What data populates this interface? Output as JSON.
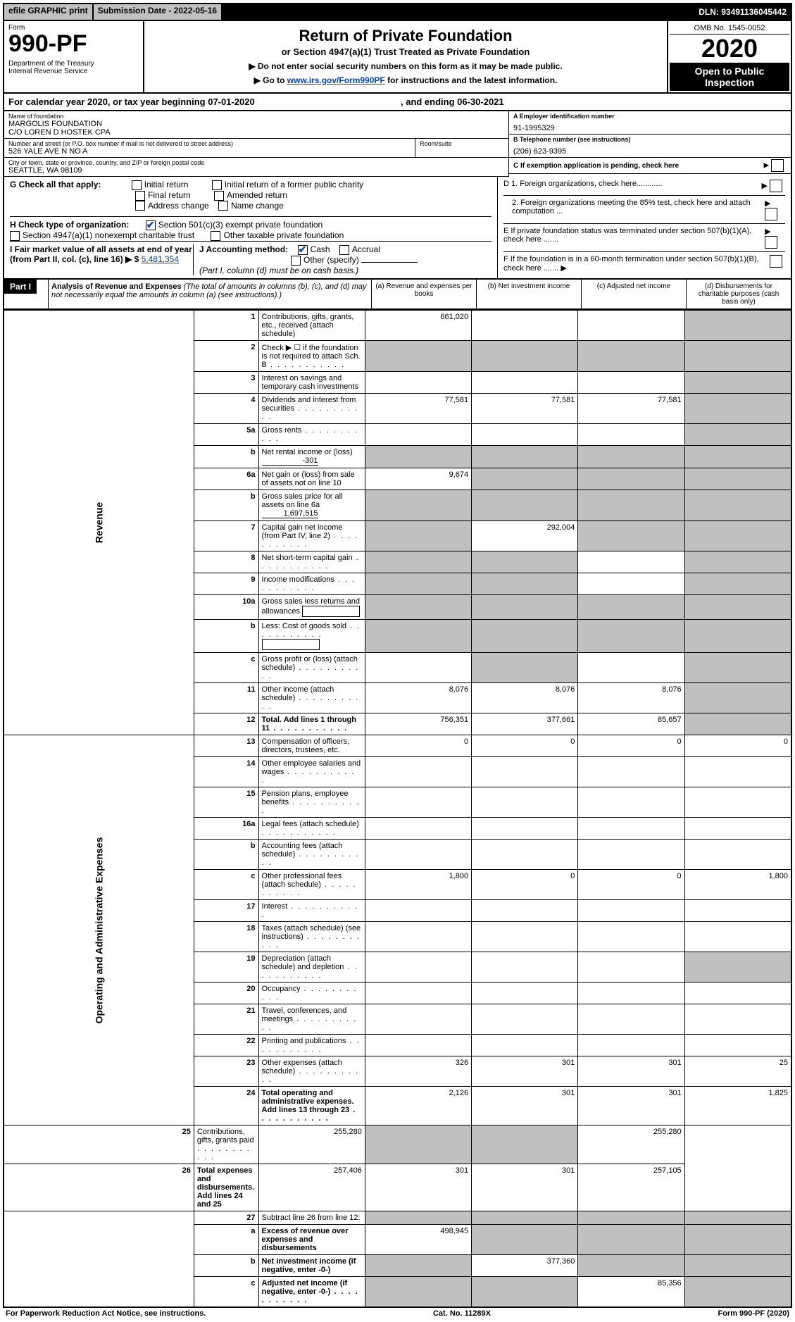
{
  "topbar": {
    "efile": "efile GRAPHIC print",
    "subdate_label": "Submission Date - 2022-05-16",
    "dln": "DLN: 93491136045442"
  },
  "header": {
    "form_word": "Form",
    "form_no": "990-PF",
    "dept": "Department of the Treasury\nInternal Revenue Service",
    "title": "Return of Private Foundation",
    "subtitle": "or Section 4947(a)(1) Trust Treated as Private Foundation",
    "instr1": "▶ Do not enter social security numbers on this form as it may be made public.",
    "instr2": "▶ Go to www.irs.gov/Form990PF for instructions and the latest information.",
    "omb": "OMB No. 1545-0052",
    "year": "2020",
    "open": "Open to Public Inspection"
  },
  "yearline": {
    "prefix": "For calendar year 2020, or tax year beginning 07-01-2020",
    "mid": ", and ending 06-30-2021"
  },
  "info": {
    "name_lbl": "Name of foundation",
    "name_val": "MARGOLIS FOUNDATION\nC/O LOREN D HOSTEK CPA",
    "ein_lbl": "A Employer identification number",
    "ein_val": "91-1995329",
    "addr_lbl": "Number and street (or P.O. box number if mail is not delivered to street address)",
    "addr_val": "526 YALE AVE N NO A",
    "room_lbl": "Room/suite",
    "room_val": "",
    "tel_lbl": "B Telephone number (see instructions)",
    "tel_val": "(206) 623-9395",
    "city_lbl": "City or town, state or province, country, and ZIP or foreign postal code",
    "city_val": "SEATTLE, WA  98109",
    "c_lbl": "C If exemption application is pending, check here"
  },
  "checks": {
    "g_label": "G Check all that apply:",
    "g_opts": [
      "Initial return",
      "Initial return of a former public charity",
      "Final return",
      "Amended return",
      "Address change",
      "Name change"
    ],
    "h_label": "H Check type of organization:",
    "h_opt1": "Section 501(c)(3) exempt private foundation",
    "h_opt2": "Section 4947(a)(1) nonexempt charitable trust",
    "h_opt3": "Other taxable private foundation",
    "i_label": "I Fair market value of all assets at end of year (from Part II, col. (c), line 16) ▶ $",
    "i_val": "5,481,354",
    "j_label": "J Accounting method:",
    "j_cash": "Cash",
    "j_accrual": "Accrual",
    "j_other": "Other (specify)",
    "j_note": "(Part I, column (d) must be on cash basis.)",
    "d1": "D 1. Foreign organizations, check here............",
    "d2": "2. Foreign organizations meeting the 85% test, check here and attach computation ...",
    "e": "E  If private foundation status was terminated under section 507(b)(1)(A), check here .......",
    "f": "F  If the foundation is in a 60-month termination under section 507(b)(1)(B), check here .......  ▶"
  },
  "part1": {
    "label": "Part I",
    "title": "Analysis of Revenue and Expenses",
    "note": "(The total of amounts in columns (b), (c), and (d) may not necessarily equal the amounts in column (a) (see instructions).)",
    "cols": {
      "a": "(a) Revenue and expenses per books",
      "b": "(b) Net investment income",
      "c": "(c) Adjusted net income",
      "d": "(d) Disbursements for charitable purposes (cash basis only)"
    }
  },
  "side_labels": {
    "rev": "Revenue",
    "exp": "Operating and Administrative Expenses"
  },
  "rows": [
    {
      "ln": "1",
      "desc": "Contributions, gifts, grants, etc., received (attach schedule)",
      "a": "661,020",
      "b": "",
      "c": "",
      "d": "",
      "dgrey": true
    },
    {
      "ln": "2",
      "desc": "Check ▶ ☐ if the foundation is not required to attach Sch. B",
      "a": "",
      "b": "",
      "c": "",
      "d": "",
      "agrey": true,
      "bgrey": true,
      "cgrey": true,
      "dgrey": true,
      "dots": true
    },
    {
      "ln": "3",
      "desc": "Interest on savings and temporary cash investments",
      "a": "",
      "b": "",
      "c": "",
      "d": "",
      "dgrey": true
    },
    {
      "ln": "4",
      "desc": "Dividends and interest from securities",
      "a": "77,581",
      "b": "77,581",
      "c": "77,581",
      "d": "",
      "dots": true,
      "dgrey": true
    },
    {
      "ln": "5a",
      "desc": "Gross rents",
      "a": "",
      "b": "",
      "c": "",
      "d": "",
      "dots": true,
      "dgrey": true
    },
    {
      "ln": "b",
      "desc": "Net rental income or (loss)",
      "inline_val": "-301",
      "a": "",
      "b": "",
      "c": "",
      "d": "",
      "agrey": true,
      "bgrey": true,
      "cgrey": true,
      "dgrey": true
    },
    {
      "ln": "6a",
      "desc": "Net gain or (loss) from sale of assets not on line 10",
      "a": "9,674",
      "b": "",
      "c": "",
      "d": "",
      "bgrey": true,
      "cgrey": true,
      "dgrey": true
    },
    {
      "ln": "b",
      "desc": "Gross sales price for all assets on line 6a",
      "inline_val": "1,697,515",
      "a": "",
      "b": "",
      "c": "",
      "d": "",
      "agrey": true,
      "bgrey": true,
      "cgrey": true,
      "dgrey": true
    },
    {
      "ln": "7",
      "desc": "Capital gain net income (from Part IV, line 2)",
      "a": "",
      "b": "292,004",
      "c": "",
      "d": "",
      "dots": true,
      "agrey": true,
      "cgrey": true,
      "dgrey": true
    },
    {
      "ln": "8",
      "desc": "Net short-term capital gain",
      "a": "",
      "b": "",
      "c": "",
      "d": "",
      "dots": true,
      "agrey": true,
      "bgrey": true,
      "dgrey": true
    },
    {
      "ln": "9",
      "desc": "Income modifications",
      "a": "",
      "b": "",
      "c": "",
      "d": "",
      "dots": true,
      "agrey": true,
      "bgrey": true,
      "dgrey": true
    },
    {
      "ln": "10a",
      "desc": "Gross sales less returns and allowances",
      "a": "",
      "b": "",
      "c": "",
      "d": "",
      "box": true,
      "agrey": true,
      "bgrey": true,
      "cgrey": true,
      "dgrey": true
    },
    {
      "ln": "b",
      "desc": "Less: Cost of goods sold",
      "a": "",
      "b": "",
      "c": "",
      "d": "",
      "dots": true,
      "box": true,
      "agrey": true,
      "bgrey": true,
      "cgrey": true,
      "dgrey": true
    },
    {
      "ln": "c",
      "desc": "Gross profit or (loss) (attach schedule)",
      "a": "",
      "b": "",
      "c": "",
      "d": "",
      "dots": true,
      "bgrey": true,
      "dgrey": true
    },
    {
      "ln": "11",
      "desc": "Other income (attach schedule)",
      "a": "8,076",
      "b": "8,076",
      "c": "8,076",
      "d": "",
      "dots": true,
      "dgrey": true
    },
    {
      "ln": "12",
      "desc": "Total. Add lines 1 through 11",
      "a": "756,351",
      "b": "377,661",
      "c": "85,657",
      "d": "",
      "dots": true,
      "bold": true,
      "dgrey": true
    },
    {
      "ln": "13",
      "desc": "Compensation of officers, directors, trustees, etc.",
      "a": "0",
      "b": "0",
      "c": "0",
      "d": "0",
      "section": "exp"
    },
    {
      "ln": "14",
      "desc": "Other employee salaries and wages",
      "a": "",
      "b": "",
      "c": "",
      "d": "",
      "dots": true
    },
    {
      "ln": "15",
      "desc": "Pension plans, employee benefits",
      "a": "",
      "b": "",
      "c": "",
      "d": "",
      "dots": true
    },
    {
      "ln": "16a",
      "desc": "Legal fees (attach schedule)",
      "a": "",
      "b": "",
      "c": "",
      "d": "",
      "dots": true
    },
    {
      "ln": "b",
      "desc": "Accounting fees (attach schedule)",
      "a": "",
      "b": "",
      "c": "",
      "d": "",
      "dots": true
    },
    {
      "ln": "c",
      "desc": "Other professional fees (attach schedule)",
      "a": "1,800",
      "b": "0",
      "c": "0",
      "d": "1,800",
      "dots": true
    },
    {
      "ln": "17",
      "desc": "Interest",
      "a": "",
      "b": "",
      "c": "",
      "d": "",
      "dots": true
    },
    {
      "ln": "18",
      "desc": "Taxes (attach schedule) (see instructions)",
      "a": "",
      "b": "",
      "c": "",
      "d": "",
      "dots": true
    },
    {
      "ln": "19",
      "desc": "Depreciation (attach schedule) and depletion",
      "a": "",
      "b": "",
      "c": "",
      "d": "",
      "dots": true,
      "dgrey": true
    },
    {
      "ln": "20",
      "desc": "Occupancy",
      "a": "",
      "b": "",
      "c": "",
      "d": "",
      "dots": true
    },
    {
      "ln": "21",
      "desc": "Travel, conferences, and meetings",
      "a": "",
      "b": "",
      "c": "",
      "d": "",
      "dots": true
    },
    {
      "ln": "22",
      "desc": "Printing and publications",
      "a": "",
      "b": "",
      "c": "",
      "d": "",
      "dots": true
    },
    {
      "ln": "23",
      "desc": "Other expenses (attach schedule)",
      "a": "326",
      "b": "301",
      "c": "301",
      "d": "25",
      "dots": true
    },
    {
      "ln": "24",
      "desc": "Total operating and administrative expenses. Add lines 13 through 23",
      "a": "2,126",
      "b": "301",
      "c": "301",
      "d": "1,825",
      "dots": true,
      "bold": true
    },
    {
      "ln": "25",
      "desc": "Contributions, gifts, grants paid",
      "a": "255,280",
      "b": "",
      "c": "",
      "d": "255,280",
      "dots": true,
      "bgrey": true,
      "cgrey": true
    },
    {
      "ln": "26",
      "desc": "Total expenses and disbursements. Add lines 24 and 25",
      "a": "257,406",
      "b": "301",
      "c": "301",
      "d": "257,105",
      "bold": true
    },
    {
      "ln": "27",
      "desc": "Subtract line 26 from line 12:",
      "a": "",
      "b": "",
      "c": "",
      "d": "",
      "agrey": true,
      "bgrey": true,
      "cgrey": true,
      "dgrey": true,
      "section": "bottom"
    },
    {
      "ln": "a",
      "desc": "Excess of revenue over expenses and disbursements",
      "a": "498,945",
      "b": "",
      "c": "",
      "d": "",
      "bold": true,
      "bgrey": true,
      "cgrey": true,
      "dgrey": true
    },
    {
      "ln": "b",
      "desc": "Net investment income (if negative, enter -0-)",
      "a": "",
      "b": "377,360",
      "c": "",
      "d": "",
      "bold": true,
      "agrey": true,
      "cgrey": true,
      "dgrey": true
    },
    {
      "ln": "c",
      "desc": "Adjusted net income (if negative, enter -0-)",
      "a": "",
      "b": "",
      "c": "85,356",
      "d": "",
      "bold": true,
      "dots": true,
      "agrey": true,
      "bgrey": true,
      "dgrey": true
    }
  ],
  "footer": {
    "left": "For Paperwork Reduction Act Notice, see instructions.",
    "mid": "Cat. No. 11289X",
    "right": "Form 990-PF (2020)"
  },
  "style": {
    "row_span_rev": 16,
    "row_span_exp": 14
  }
}
